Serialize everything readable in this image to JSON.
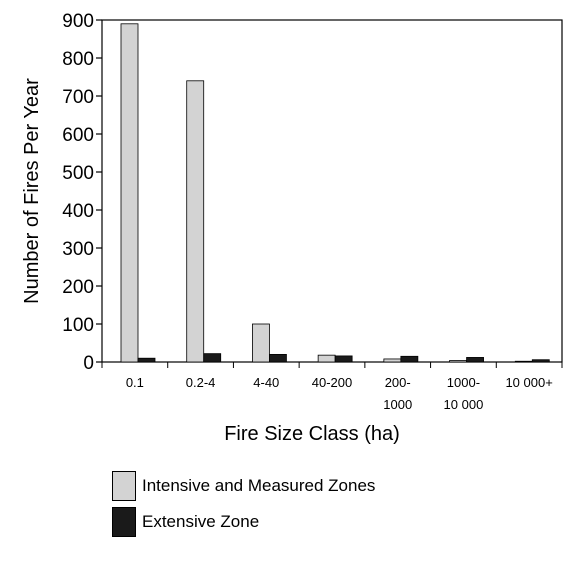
{
  "chart_data": {
    "type": "bar",
    "xlabel": "Fire Size Class (ha)",
    "ylabel": "Number of Fires Per Year",
    "ylim": [
      0,
      900
    ],
    "yticks": [
      "0",
      "100",
      "200",
      "300",
      "400",
      "500",
      "600",
      "700",
      "800",
      "900"
    ],
    "categories": [
      [
        "0.1"
      ],
      [
        "0.2-4"
      ],
      [
        "4-40"
      ],
      [
        "40-200"
      ],
      [
        "200-",
        "1000"
      ],
      [
        "1000-",
        "10 000"
      ],
      [
        "10 000+"
      ]
    ],
    "series": [
      {
        "name": "Intensive and Measured Zones",
        "color": "#d3d3d3",
        "values": [
          890,
          740,
          100,
          18,
          8,
          4,
          2
        ]
      },
      {
        "name": "Extensive Zone",
        "color": "#1a1a1a",
        "values": [
          10,
          22,
          20,
          16,
          15,
          12,
          6
        ]
      }
    ],
    "legend_position": "bottom-left"
  }
}
